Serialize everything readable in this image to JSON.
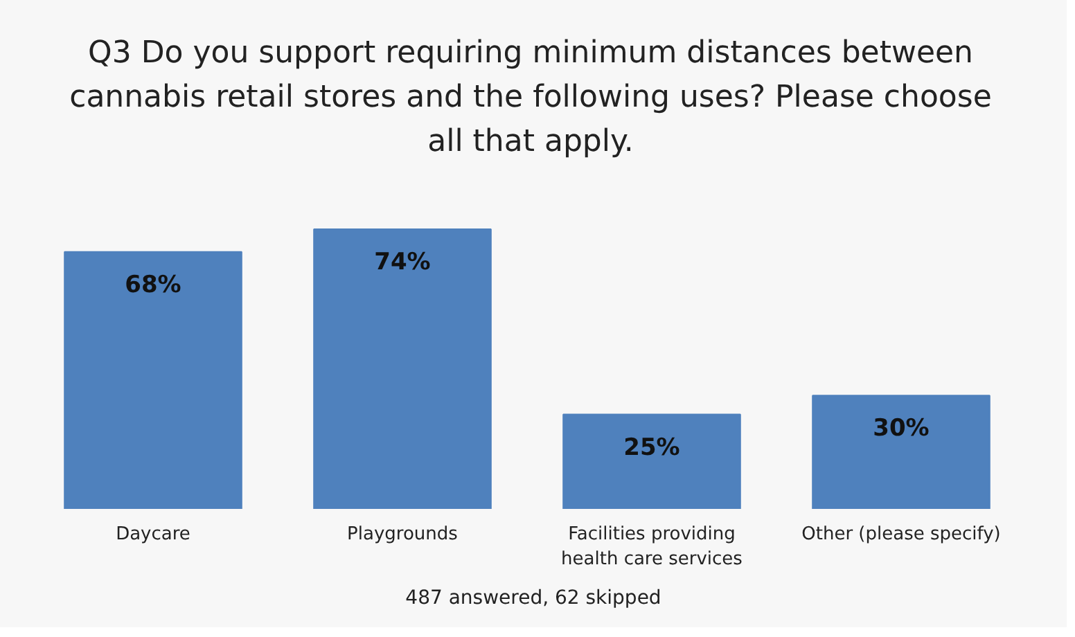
{
  "chart_data": {
    "type": "bar",
    "title": "Q3 Do you support requiring minimum distances between cannabis retail stores and the following uses? Please choose all that apply.",
    "categories": [
      "Daycare",
      "Playgrounds",
      "Facilities providing health care services",
      "Other (please specify)"
    ],
    "values": [
      68,
      74,
      25,
      30
    ],
    "value_labels": [
      "68%",
      "74%",
      "25%",
      "30%"
    ],
    "color": "#4f81bd",
    "annotations": [
      "487 answered, 62 skipped"
    ]
  }
}
